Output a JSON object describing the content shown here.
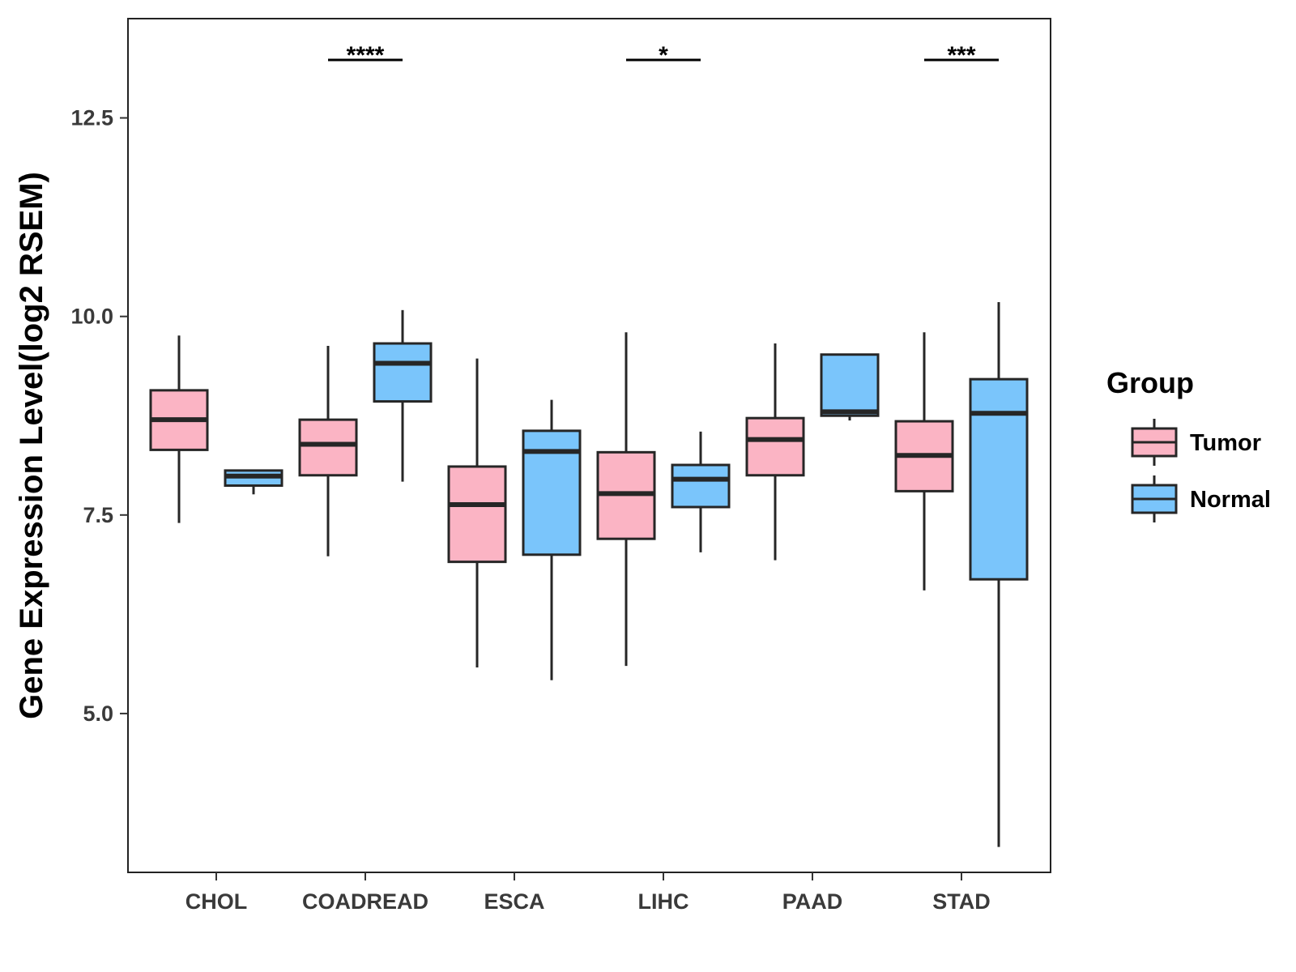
{
  "chart_data": {
    "type": "boxplot",
    "ylabel": "Gene Expression Level(log2 RSEM)",
    "xlabel": "",
    "ylim": [
      3.0,
      13.75
    ],
    "yticks": [
      5.0,
      7.5,
      10.0,
      12.5
    ],
    "ytick_labels": [
      "5.0",
      "7.5",
      "10.0",
      "12.5"
    ],
    "categories": [
      "CHOL",
      "COADREAD",
      "ESCA",
      "LIHC",
      "PAAD",
      "STAD"
    ],
    "legend": {
      "title": "Group",
      "position": "right",
      "entries": [
        {
          "name": "Tumor",
          "color": "#fbb4c4"
        },
        {
          "name": "Normal",
          "color": "#7ac5fb"
        }
      ]
    },
    "series": [
      {
        "name": "Tumor",
        "color": "#fbb4c4",
        "boxes": [
          {
            "category": "CHOL",
            "min": 7.4,
            "q1": 8.32,
            "median": 8.7,
            "q3": 9.07,
            "max": 9.76
          },
          {
            "category": "COADREAD",
            "min": 6.98,
            "q1": 8.0,
            "median": 8.39,
            "q3": 8.7,
            "max": 9.63
          },
          {
            "category": "ESCA",
            "min": 5.58,
            "q1": 6.91,
            "median": 7.63,
            "q3": 8.11,
            "max": 9.47
          },
          {
            "category": "LIHC",
            "min": 5.6,
            "q1": 7.2,
            "median": 7.77,
            "q3": 8.29,
            "max": 9.8
          },
          {
            "category": "PAAD",
            "min": 6.93,
            "q1": 8.0,
            "median": 8.45,
            "q3": 8.72,
            "max": 9.66
          },
          {
            "category": "STAD",
            "min": 6.55,
            "q1": 7.8,
            "median": 8.25,
            "q3": 8.68,
            "max": 9.8
          }
        ]
      },
      {
        "name": "Normal",
        "color": "#7ac5fb",
        "boxes": [
          {
            "category": "CHOL",
            "min": 7.76,
            "q1": 7.87,
            "median": 7.99,
            "q3": 8.06,
            "max": 8.06
          },
          {
            "category": "COADREAD",
            "min": 7.92,
            "q1": 8.93,
            "median": 9.41,
            "q3": 9.66,
            "max": 10.08
          },
          {
            "category": "ESCA",
            "min": 5.42,
            "q1": 7.0,
            "median": 8.3,
            "q3": 8.56,
            "max": 8.95
          },
          {
            "category": "LIHC",
            "min": 7.03,
            "q1": 7.6,
            "median": 7.95,
            "q3": 8.13,
            "max": 8.55
          },
          {
            "category": "PAAD",
            "min": 8.69,
            "q1": 8.75,
            "median": 8.8,
            "q3": 9.52,
            "max": 9.52
          },
          {
            "category": "STAD",
            "min": 3.32,
            "q1": 6.69,
            "median": 8.78,
            "q3": 9.21,
            "max": 10.18
          }
        ]
      }
    ],
    "significance": [
      {
        "category": "COADREAD",
        "label": "****"
      },
      {
        "category": "LIHC",
        "label": "*"
      },
      {
        "category": "STAD",
        "label": "***"
      }
    ]
  }
}
